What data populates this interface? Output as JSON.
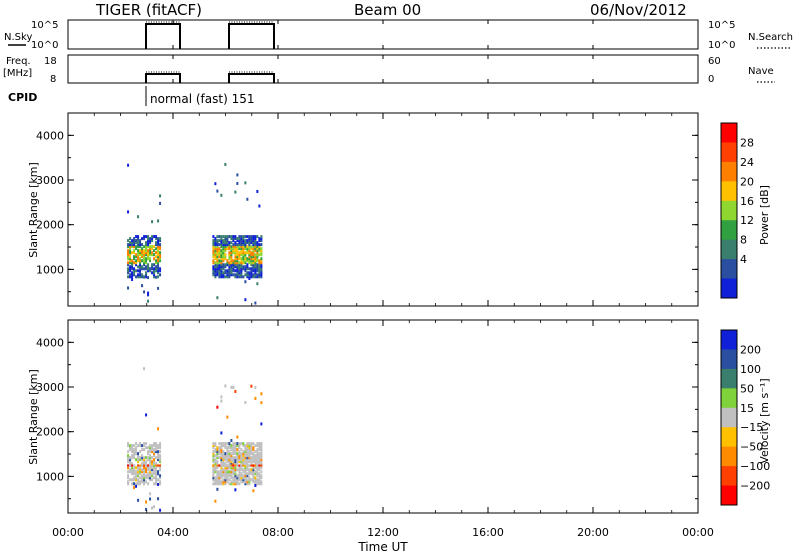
{
  "header": {
    "station": "TIGER (fitACF)",
    "beam": "Beam 00",
    "date": "06/Nov/2012"
  },
  "panels": {
    "nsky": {
      "label": "N.Sky",
      "right_label": "N.Search",
      "ticks": [
        "10^5",
        "10^0"
      ]
    },
    "freq": {
      "label_top": "Freq.",
      "label_bottom": "[MHz]",
      "right_label": "Nave",
      "ticks_left": [
        "18",
        "8"
      ],
      "ticks_right": [
        "60",
        "0"
      ]
    },
    "cpid": {
      "label": "CPID",
      "value": "normal (fast) 151"
    }
  },
  "chart_data": [
    {
      "type": "heatmap",
      "title": "",
      "quantity": "Power",
      "xlabel": "Time UT",
      "ylabel": "Slant Range [km]",
      "xlim": [
        "00:00",
        "24:00"
      ],
      "ylim": [
        180,
        4500
      ],
      "x_ticks": [
        "00:00",
        "04:00",
        "08:00",
        "12:00",
        "16:00",
        "20:00",
        "00:00"
      ],
      "y_ticks": [
        "1000",
        "2000",
        "3000",
        "4000"
      ],
      "observation_windows": [
        [
          "02:15",
          "03:30"
        ],
        [
          "05:30",
          "07:20"
        ]
      ],
      "colorbar": {
        "label": "Power [dB]",
        "ticks": [
          "28",
          "24",
          "20",
          "16",
          "12",
          "8",
          "4"
        ],
        "colors": [
          "#ff0000",
          "#ff4000",
          "#ff7f00",
          "#ffc000",
          "#8fd630",
          "#30a040",
          "#3a7f6e",
          "#2a4fa0",
          "#1020d8"
        ]
      }
    },
    {
      "type": "heatmap",
      "title": "",
      "quantity": "Velocity",
      "xlabel": "Time UT",
      "ylabel": "Slant Range [km]",
      "xlim": [
        "00:00",
        "24:00"
      ],
      "ylim": [
        180,
        4500
      ],
      "x_ticks": [
        "00:00",
        "04:00",
        "08:00",
        "12:00",
        "16:00",
        "20:00",
        "00:00"
      ],
      "y_ticks": [
        "1000",
        "2000",
        "3000",
        "4000"
      ],
      "observation_windows": [
        [
          "02:15",
          "03:30"
        ],
        [
          "05:30",
          "07:20"
        ]
      ],
      "colorbar": {
        "label": "Velocity [m s⁻¹]",
        "ticks": [
          "200",
          "100",
          "50",
          "15",
          "−15",
          "−50",
          "−100",
          "−200"
        ],
        "colors": [
          "#1020d8",
          "#2a4fa0",
          "#3a7f6e",
          "#7fd23a",
          "#c0c0c0",
          "#ffc000",
          "#ff8c00",
          "#ff4000",
          "#ff0000"
        ]
      }
    }
  ],
  "xaxis": {
    "label": "Time UT",
    "ticks": [
      "00:00",
      "04:00",
      "08:00",
      "12:00",
      "16:00",
      "20:00",
      "00:00"
    ]
  }
}
